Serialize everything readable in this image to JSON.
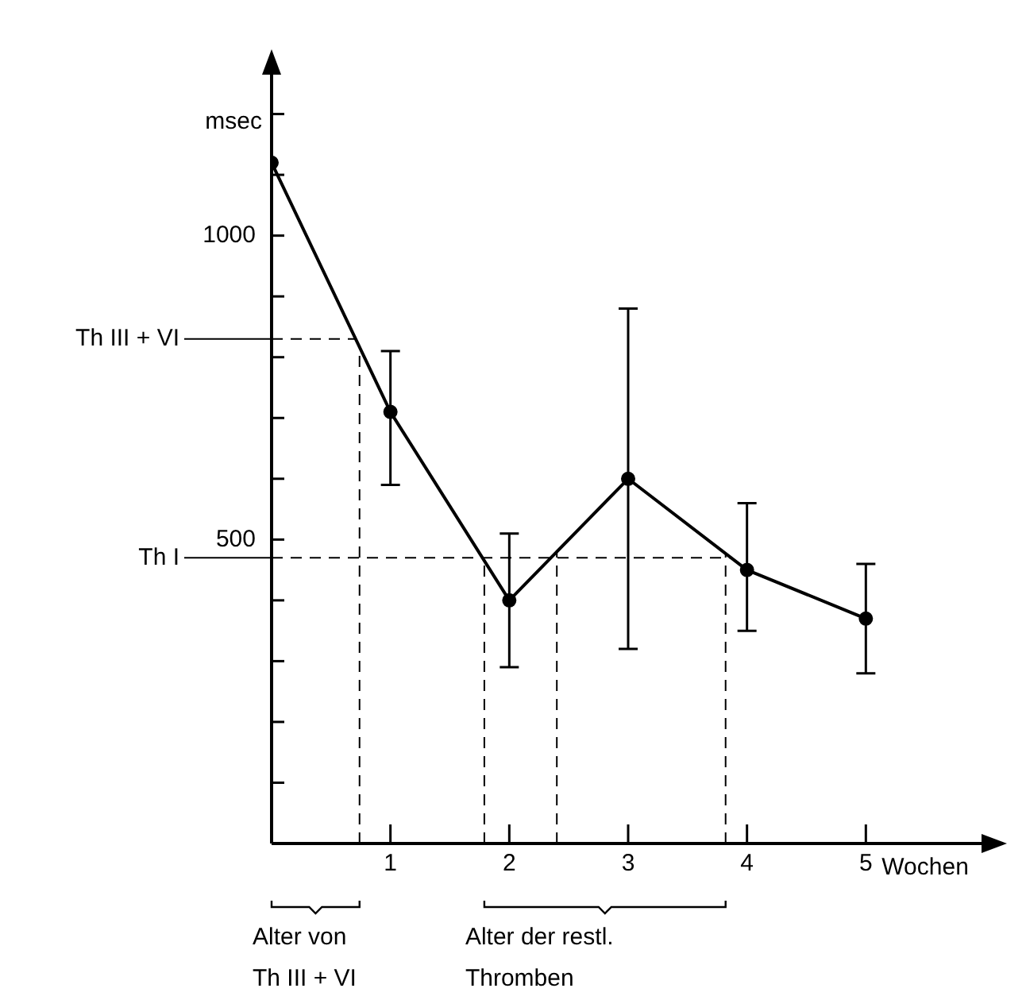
{
  "chart_data": {
    "type": "line",
    "ylabel": "msec",
    "xlabel": "Wochen",
    "x": [
      0,
      1,
      2,
      3,
      4,
      5
    ],
    "series": [
      {
        "color": "#000000",
        "values": [
          1120,
          710,
          400,
          600,
          450,
          370
        ],
        "errors": [
          null,
          [
            590,
            810
          ],
          [
            290,
            510
          ],
          [
            320,
            880
          ],
          [
            350,
            560
          ],
          [
            280,
            460
          ]
        ]
      }
    ],
    "xlim": [
      0,
      6
    ],
    "xticks": [
      1,
      2,
      3,
      4,
      5
    ],
    "ylim": [
      0,
      1270
    ],
    "yticks": [
      {
        "value": 100,
        "label": null
      },
      {
        "value": 200,
        "label": null
      },
      {
        "value": 300,
        "label": null
      },
      {
        "value": 400,
        "label": null
      },
      500,
      {
        "value": 600,
        "label": null
      },
      {
        "value": 700,
        "label": null
      },
      {
        "value": 800,
        "label": null
      },
      {
        "value": 900,
        "label": null
      },
      1000,
      {
        "value": 1100,
        "label": null
      },
      {
        "value": 1200,
        "label": null
      }
    ],
    "ref_lines": [
      {
        "axis": "y",
        "value": 830,
        "label": "Th III + VI",
        "line_style": "dashed"
      },
      {
        "axis": "y",
        "value": 470,
        "label": "Th I",
        "line_style": "dashed"
      },
      {
        "axis": "x",
        "value": 0.74,
        "line_style": "dashed"
      },
      {
        "axis": "x",
        "value": 1.79,
        "line_style": "dashed"
      },
      {
        "axis": "x",
        "value": 2.4,
        "line_style": "dashed"
      },
      {
        "axis": "x",
        "value": 3.82,
        "line_style": "dashed"
      }
    ],
    "annotations": [
      "Alter von\nTh III + VI",
      "Alter der restl.\nThromben"
    ],
    "grid": false,
    "legend": false,
    "marker": "circle",
    "line_style": "solid"
  }
}
